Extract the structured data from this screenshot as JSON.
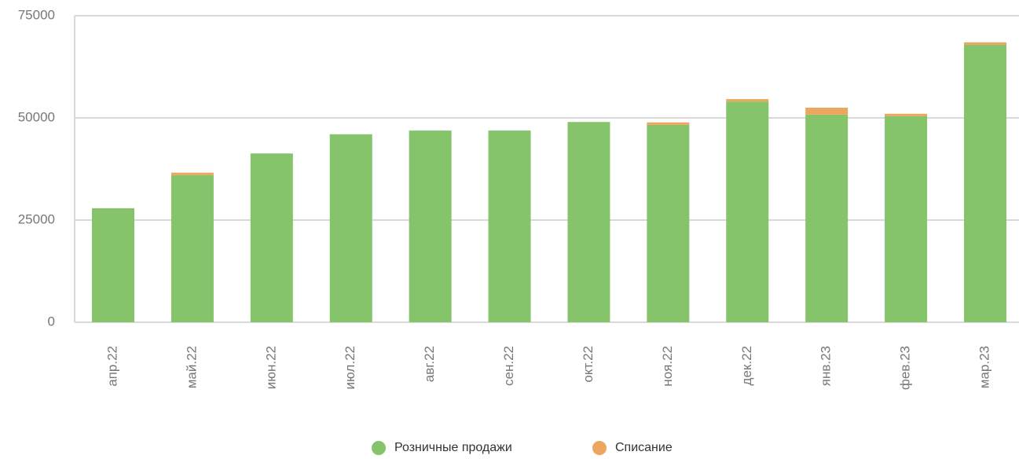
{
  "chart_data": {
    "type": "bar",
    "stacked": true,
    "categories": [
      "апр.22",
      "май.22",
      "июн.22",
      "июл.22",
      "авг.22",
      "сен.22",
      "окт.22",
      "ноя.22",
      "дек.22",
      "янв.23",
      "фев.23",
      "мар.23"
    ],
    "series": [
      {
        "name": "Розничные продажи",
        "color": "#86c46b",
        "values": [
          27900,
          36000,
          41300,
          46000,
          46900,
          46900,
          49000,
          48300,
          54000,
          50800,
          50400,
          67900
        ]
      },
      {
        "name": "Списание",
        "color": "#eda65e",
        "values": [
          0,
          600,
          0,
          0,
          0,
          0,
          0,
          600,
          600,
          1700,
          600,
          600
        ]
      }
    ],
    "ylim": [
      0,
      75000
    ],
    "yticks": [
      0,
      25000,
      50000,
      75000
    ],
    "grid": true,
    "legend": "bottom"
  }
}
